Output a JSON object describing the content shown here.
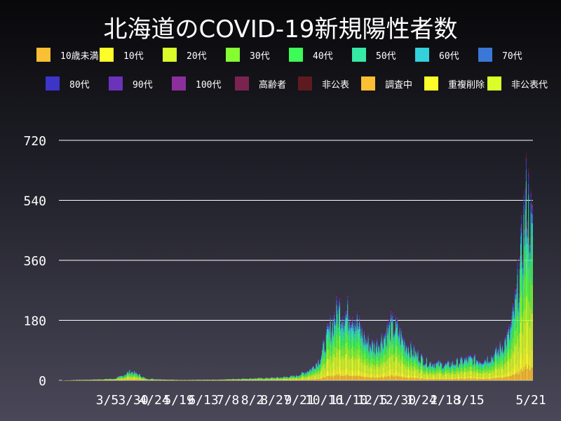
{
  "chart_data": {
    "type": "bar",
    "stacked": true,
    "title": "北海道のCOVID-19新規陽性者数",
    "xlabel": "",
    "ylabel": "",
    "ylim": [
      0,
      720
    ],
    "yticks": [
      0,
      180,
      360,
      540,
      720
    ],
    "grid": "horizontal",
    "legend_position": "top",
    "x_tick_labels": [
      "3/5",
      "3/30",
      "4/24",
      "5/19",
      "6/13",
      "7/8",
      "8/2",
      "8/27",
      "9/21",
      "10/16",
      "11/10",
      "12/5",
      "12/30",
      "1/24",
      "2/18",
      "3/15",
      "5/21"
    ],
    "legend": [
      {
        "name": "10歳未満",
        "color": "#fbbf33"
      },
      {
        "name": "10代",
        "color": "#fdfd2a"
      },
      {
        "name": "20代",
        "color": "#dbfd2a"
      },
      {
        "name": "30代",
        "color": "#86fd31"
      },
      {
        "name": "40代",
        "color": "#3dfb58"
      },
      {
        "name": "50代",
        "color": "#36e9a6"
      },
      {
        "name": "60代",
        "color": "#34d0dc"
      },
      {
        "name": "70代",
        "color": "#3a77d7"
      },
      {
        "name": "80代",
        "color": "#3c35c8"
      },
      {
        "name": "90代",
        "color": "#6c33ba"
      },
      {
        "name": "100代",
        "color": "#8c2f9c"
      },
      {
        "name": "高齢者",
        "color": "#7a2350"
      },
      {
        "name": "非公表",
        "color": "#5e1b1f"
      },
      {
        "name": "調査中",
        "color": "#fbbf33"
      },
      {
        "name": "重複削除",
        "color": "#fdfd2a"
      },
      {
        "name": "非公表代",
        "color": "#dbfd2a"
      }
    ],
    "totals_keypoints": [
      [
        0,
        0
      ],
      [
        20,
        2
      ],
      [
        40,
        3
      ],
      [
        70,
        6
      ],
      [
        80,
        15
      ],
      [
        90,
        30
      ],
      [
        100,
        20
      ],
      [
        110,
        6
      ],
      [
        140,
        3
      ],
      [
        160,
        2
      ],
      [
        200,
        3
      ],
      [
        230,
        6
      ],
      [
        260,
        8
      ],
      [
        280,
        10
      ],
      [
        300,
        15
      ],
      [
        310,
        25
      ],
      [
        320,
        40
      ],
      [
        330,
        70
      ],
      [
        340,
        150
      ],
      [
        348,
        200
      ],
      [
        355,
        230
      ],
      [
        362,
        210
      ],
      [
        370,
        220
      ],
      [
        378,
        180
      ],
      [
        385,
        140
      ],
      [
        392,
        120
      ],
      [
        400,
        110
      ],
      [
        410,
        140
      ],
      [
        420,
        175
      ],
      [
        428,
        165
      ],
      [
        435,
        130
      ],
      [
        445,
        100
      ],
      [
        455,
        80
      ],
      [
        465,
        60
      ],
      [
        475,
        55
      ],
      [
        490,
        50
      ],
      [
        505,
        60
      ],
      [
        520,
        70
      ],
      [
        535,
        65
      ],
      [
        550,
        80
      ],
      [
        560,
        110
      ],
      [
        570,
        150
      ],
      [
        578,
        250
      ],
      [
        584,
        380
      ],
      [
        588,
        500
      ],
      [
        592,
        590
      ],
      [
        595,
        540
      ],
      [
        598,
        470
      ]
    ],
    "day_count": 600
  }
}
